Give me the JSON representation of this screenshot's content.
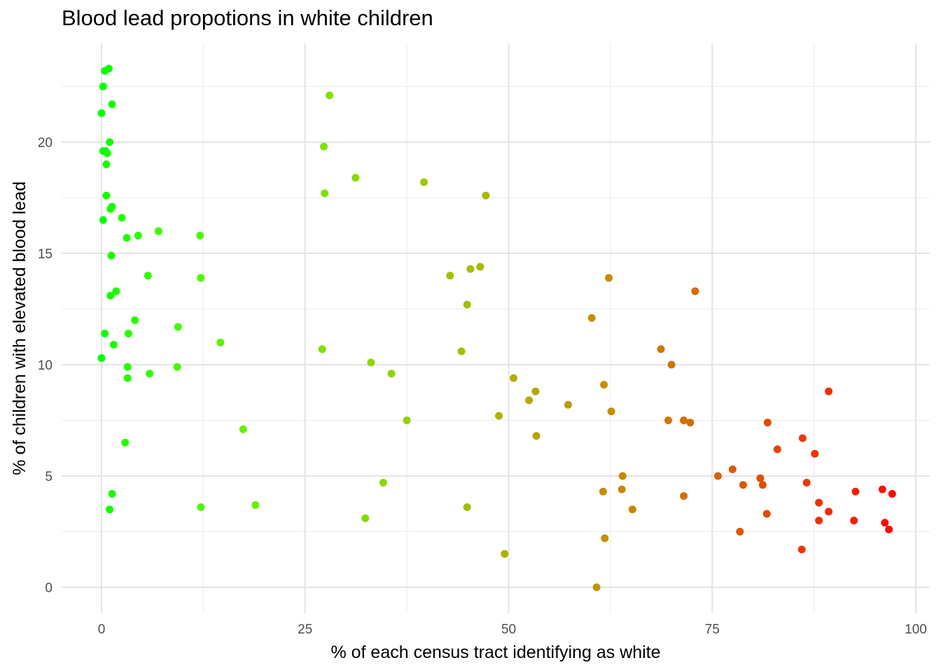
{
  "chart_data": {
    "type": "scatter",
    "title": "Blood lead propotions in white children",
    "xlabel": "% of each census tract identifying as white",
    "ylabel": "% of children with elevated blood lead",
    "xlim": [
      -5,
      102
    ],
    "ylim": [
      -1.1,
      24.5
    ],
    "x_ticks": [
      0,
      25,
      50,
      75,
      100
    ],
    "y_ticks": [
      0,
      5,
      10,
      15,
      20
    ],
    "grid": true,
    "legend": "none",
    "color_scale": {
      "low": "#00ff00",
      "high": "#ff0000",
      "based_on": "x"
    },
    "points": [
      {
        "x": 0.9,
        "y": 23.3
      },
      {
        "x": 0.4,
        "y": 23.2
      },
      {
        "x": 0.2,
        "y": 22.5
      },
      {
        "x": 1.3,
        "y": 21.7
      },
      {
        "x": 0.0,
        "y": 21.3
      },
      {
        "x": 1.0,
        "y": 20.0
      },
      {
        "x": 0.2,
        "y": 19.6
      },
      {
        "x": 0.5,
        "y": 19.6
      },
      {
        "x": 0.7,
        "y": 19.5
      },
      {
        "x": 0.6,
        "y": 19.0
      },
      {
        "x": 0.6,
        "y": 17.6
      },
      {
        "x": 1.3,
        "y": 17.1
      },
      {
        "x": 1.1,
        "y": 17.0
      },
      {
        "x": 0.2,
        "y": 16.5
      },
      {
        "x": 2.5,
        "y": 16.6
      },
      {
        "x": 7.0,
        "y": 16.0
      },
      {
        "x": 3.1,
        "y": 15.7
      },
      {
        "x": 4.5,
        "y": 15.8
      },
      {
        "x": 12.1,
        "y": 15.8
      },
      {
        "x": 1.2,
        "y": 14.9
      },
      {
        "x": 5.7,
        "y": 14.0
      },
      {
        "x": 12.2,
        "y": 13.9
      },
      {
        "x": 1.8,
        "y": 13.3
      },
      {
        "x": 1.1,
        "y": 13.1
      },
      {
        "x": 4.1,
        "y": 12.0
      },
      {
        "x": 9.4,
        "y": 11.7
      },
      {
        "x": 0.4,
        "y": 11.4
      },
      {
        "x": 3.3,
        "y": 11.4
      },
      {
        "x": 14.6,
        "y": 11.0
      },
      {
        "x": 1.5,
        "y": 10.9
      },
      {
        "x": 0.0,
        "y": 10.3
      },
      {
        "x": 3.2,
        "y": 9.9
      },
      {
        "x": 9.3,
        "y": 9.9
      },
      {
        "x": 5.9,
        "y": 9.6
      },
      {
        "x": 3.2,
        "y": 9.4
      },
      {
        "x": 17.4,
        "y": 7.1
      },
      {
        "x": 2.9,
        "y": 6.5
      },
      {
        "x": 1.3,
        "y": 4.2
      },
      {
        "x": 18.9,
        "y": 3.7
      },
      {
        "x": 1.0,
        "y": 3.5
      },
      {
        "x": 12.2,
        "y": 3.6
      },
      {
        "x": 28.0,
        "y": 22.1
      },
      {
        "x": 27.3,
        "y": 19.8
      },
      {
        "x": 31.2,
        "y": 18.4
      },
      {
        "x": 39.6,
        "y": 18.2
      },
      {
        "x": 27.4,
        "y": 17.7
      },
      {
        "x": 47.2,
        "y": 17.6
      },
      {
        "x": 46.5,
        "y": 14.4
      },
      {
        "x": 45.3,
        "y": 14.3
      },
      {
        "x": 42.8,
        "y": 14.0
      },
      {
        "x": 44.9,
        "y": 12.7
      },
      {
        "x": 27.1,
        "y": 10.7
      },
      {
        "x": 44.2,
        "y": 10.6
      },
      {
        "x": 33.1,
        "y": 10.1
      },
      {
        "x": 35.6,
        "y": 9.6
      },
      {
        "x": 37.5,
        "y": 7.5
      },
      {
        "x": 48.8,
        "y": 7.7
      },
      {
        "x": 34.6,
        "y": 4.7
      },
      {
        "x": 44.9,
        "y": 3.6
      },
      {
        "x": 32.4,
        "y": 3.1
      },
      {
        "x": 62.3,
        "y": 13.9
      },
      {
        "x": 72.9,
        "y": 13.3
      },
      {
        "x": 60.2,
        "y": 12.1
      },
      {
        "x": 68.7,
        "y": 10.7
      },
      {
        "x": 70.0,
        "y": 10.0
      },
      {
        "x": 50.6,
        "y": 9.4
      },
      {
        "x": 61.7,
        "y": 9.1
      },
      {
        "x": 53.3,
        "y": 8.8
      },
      {
        "x": 52.5,
        "y": 8.4
      },
      {
        "x": 57.3,
        "y": 8.2
      },
      {
        "x": 62.6,
        "y": 7.9
      },
      {
        "x": 69.6,
        "y": 7.5
      },
      {
        "x": 71.5,
        "y": 7.5
      },
      {
        "x": 72.3,
        "y": 7.4
      },
      {
        "x": 53.4,
        "y": 6.8
      },
      {
        "x": 64.0,
        "y": 5.0
      },
      {
        "x": 61.6,
        "y": 4.3
      },
      {
        "x": 63.9,
        "y": 4.4
      },
      {
        "x": 71.5,
        "y": 4.1
      },
      {
        "x": 65.2,
        "y": 3.5
      },
      {
        "x": 61.8,
        "y": 2.2
      },
      {
        "x": 49.5,
        "y": 1.5
      },
      {
        "x": 60.8,
        "y": 0.0
      },
      {
        "x": 89.3,
        "y": 8.8
      },
      {
        "x": 81.8,
        "y": 7.4
      },
      {
        "x": 86.1,
        "y": 6.7
      },
      {
        "x": 83.0,
        "y": 6.2
      },
      {
        "x": 87.6,
        "y": 6.0
      },
      {
        "x": 75.7,
        "y": 5.0
      },
      {
        "x": 77.5,
        "y": 5.3
      },
      {
        "x": 80.9,
        "y": 4.9
      },
      {
        "x": 86.6,
        "y": 4.7
      },
      {
        "x": 78.8,
        "y": 4.6
      },
      {
        "x": 81.2,
        "y": 4.6
      },
      {
        "x": 92.6,
        "y": 4.3
      },
      {
        "x": 95.9,
        "y": 4.4
      },
      {
        "x": 97.1,
        "y": 4.2
      },
      {
        "x": 88.1,
        "y": 3.8
      },
      {
        "x": 89.3,
        "y": 3.4
      },
      {
        "x": 81.7,
        "y": 3.3
      },
      {
        "x": 88.1,
        "y": 3.0
      },
      {
        "x": 92.4,
        "y": 3.0
      },
      {
        "x": 96.2,
        "y": 2.9
      },
      {
        "x": 96.7,
        "y": 2.6
      },
      {
        "x": 78.4,
        "y": 2.5
      },
      {
        "x": 86.0,
        "y": 1.7
      }
    ]
  }
}
